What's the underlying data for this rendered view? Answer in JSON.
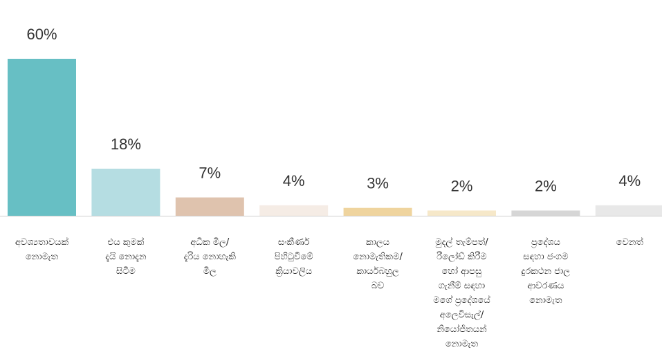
{
  "chart_data": {
    "type": "bar",
    "categories": [
      "අවශ්‍යතාවයක්\nනොමැත",
      "එය කුමක්\nදැයි නොදැන\nසිටීම",
      "අධික මිල/\nදැරිය නොහැකි\nමිල",
      "සංකීර්ණ\nපිහිටුවීමේ\nක්‍රියාවලිය",
      "කාලය\nනොමැතිකම/\nකාර්යබහුල\nබව",
      "මුදල් තැම්පත්/\nරීලෝඩ් කිරීම\nහෝ ආපසු\nගැනීම් සඳහා\nමගේ ප්‍රදේශයේ\nඅලෙවිසැල්/\nනියෝජිතයන්\nනොමැත",
      "ප්‍රදේශය\nසඳහා ජංගම\nදුරකථන ජාල\nආවරණය\nනොමැත",
      "වෙනත්"
    ],
    "values": [
      60,
      18,
      7,
      4,
      3,
      2,
      2,
      4
    ],
    "value_labels": [
      "60%",
      "18%",
      "7%",
      "4%",
      "3%",
      "2%",
      "2%",
      "4%"
    ],
    "colors": [
      "#67bfc4",
      "#b5dde2",
      "#dfc3ae",
      "#f5ece5",
      "#efd49e",
      "#f6e8c9",
      "#d6d6d6",
      "#e8e8e8"
    ]
  }
}
